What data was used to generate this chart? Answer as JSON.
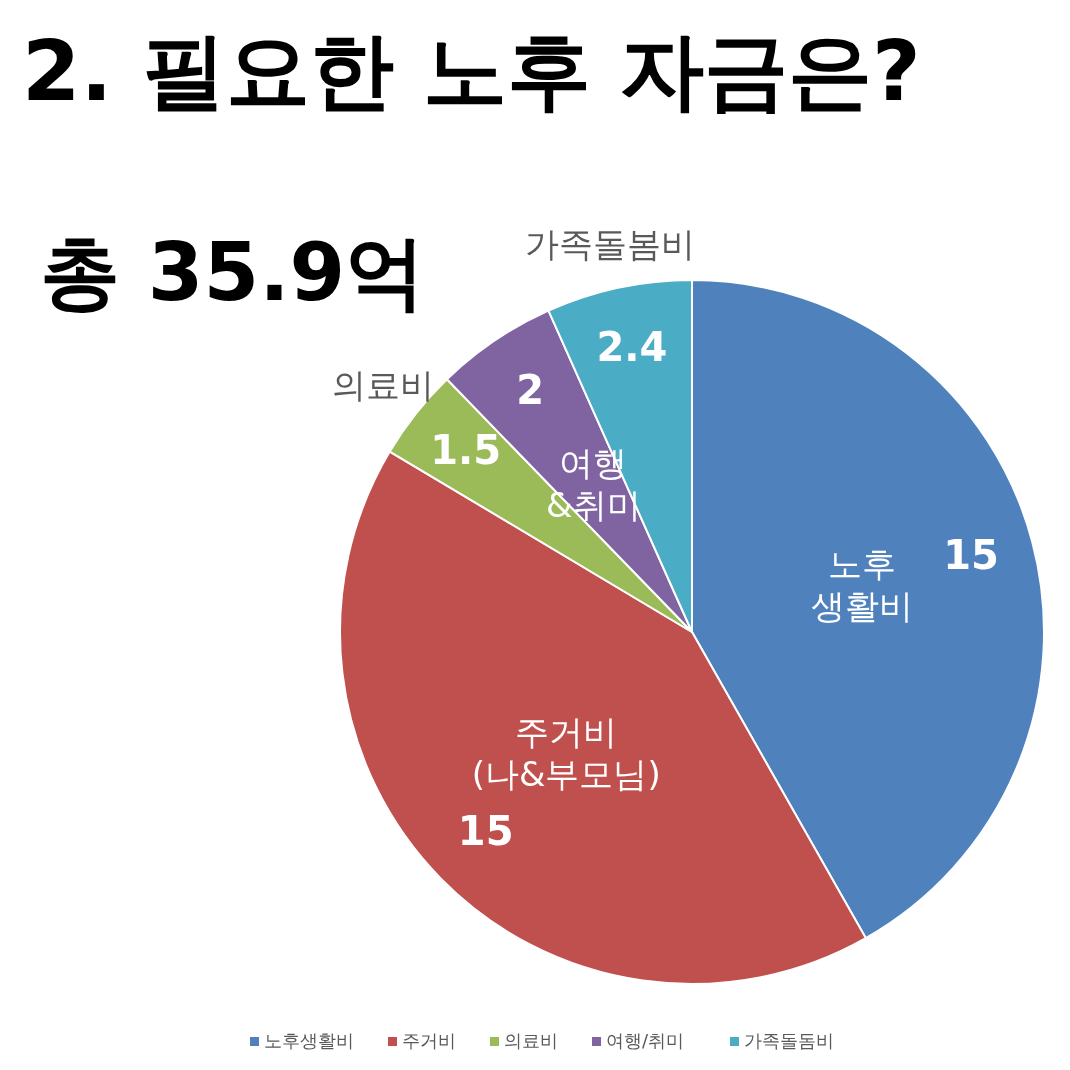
{
  "chart_data": {
    "type": "pie",
    "title": "2. 필요한 노후 자금은?",
    "subtitle": "총 35.9억",
    "categories": [
      "노후생활비",
      "주거비",
      "의료비",
      "여행/취미",
      "가족돌돔비"
    ],
    "values": [
      15,
      15,
      1.5,
      2,
      2.4
    ],
    "colors": [
      "#4f81bd",
      "#c0504d",
      "#9bbb59",
      "#8064a2",
      "#4bacc6"
    ],
    "data_labels": true,
    "legend": "bottom",
    "annotations": [
      {
        "text": "노후",
        "x": "노후생활비"
      },
      {
        "text": "생활비",
        "x": "노후생활비"
      },
      {
        "text": "주거비",
        "x": "주거비"
      },
      {
        "text": "(나&부모님)",
        "x": "주거비"
      },
      {
        "text": "의료비",
        "x": "의료비"
      },
      {
        "text": "여행",
        "x": "여행/취미"
      },
      {
        "text": "&취미",
        "x": "여행/취미"
      },
      {
        "text": "가족돌봄비",
        "x": "가족돌돔비"
      }
    ]
  }
}
